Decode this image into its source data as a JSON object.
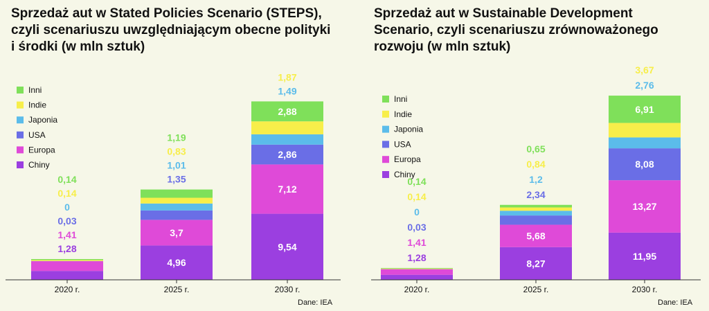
{
  "chart_data": [
    {
      "type": "bar",
      "stacked": true,
      "title": "Sprzedaż aut w Stated Policies Scenario (STEPS), czyli scenariuszu uwzględniającym obecne polityki i środki (w mln sztuk)",
      "categories": [
        "2020 r.",
        "2025 r.",
        "2030 r."
      ],
      "series": [
        {
          "name": "Chiny",
          "color": "#9b3fe0",
          "values": [
            1.28,
            4.96,
            9.54
          ],
          "labels": [
            "1,28",
            "4,96",
            "9,54"
          ]
        },
        {
          "name": "Europa",
          "color": "#df4ad8",
          "values": [
            1.41,
            3.7,
            7.12
          ],
          "labels": [
            "1,41",
            "3,7",
            "7,12"
          ]
        },
        {
          "name": "USA",
          "color": "#6a6ee6",
          "values": [
            0.03,
            1.35,
            2.86
          ],
          "labels": [
            "0,03",
            "1,35",
            "2,86"
          ]
        },
        {
          "name": "Japonia",
          "color": "#5bbcea",
          "values": [
            0,
            1.01,
            1.49
          ],
          "labels": [
            "0",
            "1,01",
            "1,49"
          ]
        },
        {
          "name": "Indie",
          "color": "#f7ee4a",
          "values": [
            0.14,
            0.83,
            1.87
          ],
          "labels": [
            "0,14",
            "0,83",
            "1,87"
          ]
        },
        {
          "name": "Inni",
          "color": "#7fe05a",
          "values": [
            0.14,
            1.19,
            2.88
          ],
          "labels": [
            "0,14",
            "1,19",
            "2,88"
          ]
        }
      ],
      "ylim": [
        0,
        26
      ],
      "legend": "top-left",
      "source": "Dane: IEA"
    },
    {
      "type": "bar",
      "stacked": true,
      "title": "Sprzedaż aut w Sustainable Development Scenario, czyli scenariuszu zrównoważonego rozwoju (w mln sztuk)",
      "categories": [
        "2020 r.",
        "2025 r.",
        "2030 r."
      ],
      "series": [
        {
          "name": "Chiny",
          "color": "#9b3fe0",
          "values": [
            1.28,
            8.27,
            11.95
          ],
          "labels": [
            "1,28",
            "8,27",
            "11,95"
          ]
        },
        {
          "name": "Europa",
          "color": "#df4ad8",
          "values": [
            1.41,
            5.68,
            13.27
          ],
          "labels": [
            "1,41",
            "5,68",
            "13,27"
          ]
        },
        {
          "name": "USA",
          "color": "#6a6ee6",
          "values": [
            0.03,
            2.34,
            8.08
          ],
          "labels": [
            "0,03",
            "2,34",
            "8,08"
          ]
        },
        {
          "name": "Japonia",
          "color": "#5bbcea",
          "values": [
            0,
            1.2,
            2.76
          ],
          "labels": [
            "0",
            "1,2",
            "2,76"
          ]
        },
        {
          "name": "Indie",
          "color": "#f7ee4a",
          "values": [
            0.14,
            0.84,
            3.67
          ],
          "labels": [
            "0,14",
            "0,84",
            "3,67"
          ]
        },
        {
          "name": "Inni",
          "color": "#7fe05a",
          "values": [
            0.14,
            0.65,
            6.91
          ],
          "labels": [
            "0,14",
            "0,65",
            "6,91"
          ]
        }
      ],
      "ylim": [
        0,
        47
      ],
      "legend": "top-left",
      "source": "Dane: IEA"
    }
  ]
}
